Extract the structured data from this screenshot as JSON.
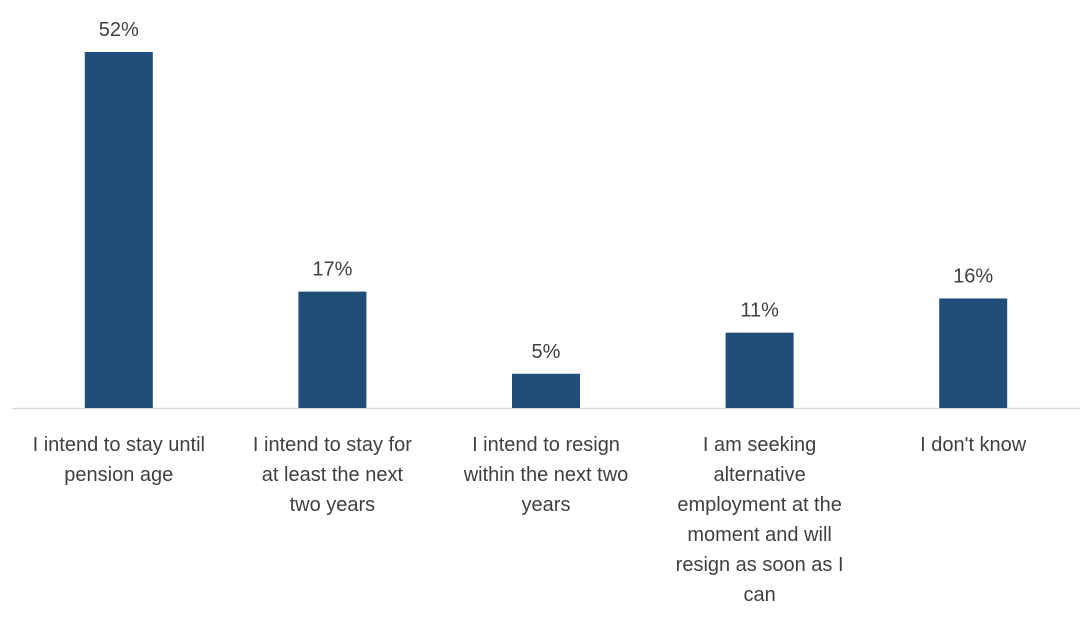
{
  "chart_data": {
    "type": "bar",
    "categories": [
      [
        "I intend to stay until",
        "pension age"
      ],
      [
        "I intend to stay for",
        "at least the next",
        "two years"
      ],
      [
        "I intend to resign",
        "within the next two",
        "years"
      ],
      [
        "I am seeking",
        "alternative",
        "employment at the",
        "moment and will",
        "resign as soon as I",
        "can"
      ],
      [
        "I don't know"
      ]
    ],
    "values": [
      52,
      17,
      5,
      11,
      16
    ],
    "value_labels": [
      "52%",
      "17%",
      "5%",
      "11%",
      "16%"
    ],
    "unit": "%",
    "ylim": [
      0,
      52
    ],
    "grid": false,
    "legend": "none",
    "bar_color": "#1f4e79",
    "axis_color": "#d9d9d9",
    "text_color": "#404040"
  }
}
